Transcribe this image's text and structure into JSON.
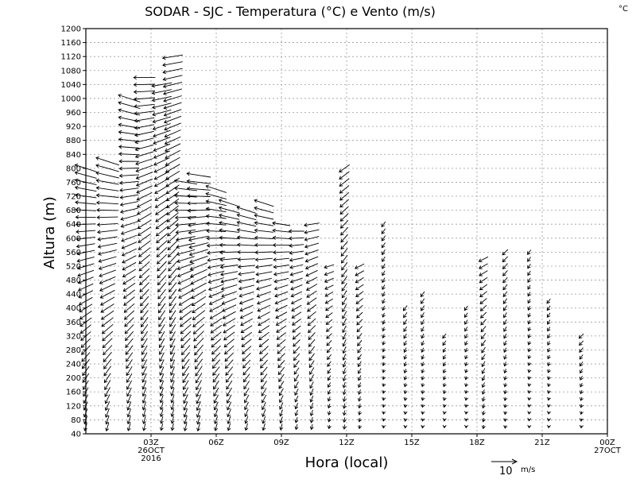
{
  "title": "SODAR - SJC - Temperatura (°C) e Vento (m/s)",
  "unit_corner": "°C",
  "scale": {
    "label": "10",
    "unit": "m/s"
  },
  "chart_data": {
    "type": "wind-profile",
    "title": "SODAR - SJC - Temperatura (°C) e Vento (m/s)",
    "xlabel": "Hora (local)",
    "ylabel": "Altura (m)",
    "ylim": [
      40,
      1200
    ],
    "xlim_hours": [
      0,
      24
    ],
    "grid": true,
    "y_ticks": [
      40,
      80,
      120,
      160,
      200,
      240,
      280,
      320,
      360,
      400,
      440,
      480,
      520,
      560,
      600,
      640,
      680,
      720,
      760,
      800,
      840,
      880,
      920,
      960,
      1000,
      1040,
      1080,
      1120,
      1160,
      1200
    ],
    "x_ticks": [
      {
        "hour": 3,
        "lines": [
          "03Z",
          "26OCT",
          "2016"
        ]
      },
      {
        "hour": 6,
        "lines": [
          "06Z"
        ]
      },
      {
        "hour": 9,
        "lines": [
          "09Z"
        ]
      },
      {
        "hour": 12,
        "lines": [
          "12Z"
        ]
      },
      {
        "hour": 15,
        "lines": [
          "15Z"
        ]
      },
      {
        "hour": 18,
        "lines": [
          "18Z"
        ]
      },
      {
        "hour": 21,
        "lines": [
          "21Z"
        ]
      },
      {
        "hour": 24,
        "lines": [
          "00Z",
          "27OCT"
        ]
      }
    ],
    "wind_profiles": [
      {
        "hour": 0.0,
        "top": 800,
        "speed": 9.0,
        "curve": 0.6
      },
      {
        "hour": 1.0,
        "top": 820,
        "speed": 9.5,
        "curve": 0.6
      },
      {
        "hour": 2.0,
        "top": 1000,
        "speed": 9.0,
        "curve": 0.6
      },
      {
        "hour": 2.7,
        "top": 1060,
        "speed": 8.5,
        "curve": 0.5
      },
      {
        "hour": 3.5,
        "top": 1050,
        "speed": 8.0,
        "curve": 0.45
      },
      {
        "hour": 4.0,
        "top": 1120,
        "speed": 8.0,
        "curve": 0.45
      },
      {
        "hour": 4.6,
        "top": 760,
        "speed": 9.0,
        "curve": 0.55
      },
      {
        "hour": 5.2,
        "top": 780,
        "speed": 9.5,
        "curve": 0.55
      },
      {
        "hour": 6.0,
        "top": 740,
        "speed": 8.5,
        "curve": 0.6
      },
      {
        "hour": 6.6,
        "top": 700,
        "speed": 8.5,
        "curve": 0.6
      },
      {
        "hour": 7.4,
        "top": 680,
        "speed": 8.0,
        "curve": 0.6
      },
      {
        "hour": 8.2,
        "top": 700,
        "speed": 8.0,
        "curve": 0.6
      },
      {
        "hour": 9.0,
        "top": 640,
        "speed": 7.0,
        "curve": 0.55
      },
      {
        "hour": 9.7,
        "top": 620,
        "speed": 6.0,
        "curve": 0.5
      },
      {
        "hour": 10.4,
        "top": 640,
        "speed": 6.0,
        "curve": 0.45
      },
      {
        "hour": 11.2,
        "top": 520,
        "speed": 4.0,
        "curve": 0.4
      },
      {
        "hour": 11.9,
        "top": 800,
        "speed": 5.0,
        "curve": 0.3
      },
      {
        "hour": 12.6,
        "top": 520,
        "speed": 4.0,
        "curve": 0.35
      },
      {
        "hour": 13.7,
        "top": 640,
        "speed": 2.5,
        "curve": 0.2
      },
      {
        "hour": 14.7,
        "top": 400,
        "speed": 2.5,
        "curve": 0.2
      },
      {
        "hour": 15.5,
        "top": 440,
        "speed": 2.5,
        "curve": 0.2
      },
      {
        "hour": 16.5,
        "top": 320,
        "speed": 2.2,
        "curve": 0.2
      },
      {
        "hour": 17.5,
        "top": 400,
        "speed": 2.2,
        "curve": 0.2
      },
      {
        "hour": 18.3,
        "top": 540,
        "speed": 4.0,
        "curve": 0.35
      },
      {
        "hour": 19.3,
        "top": 560,
        "speed": 3.0,
        "curve": 0.25
      },
      {
        "hour": 20.4,
        "top": 560,
        "speed": 2.2,
        "curve": 0.2
      },
      {
        "hour": 21.3,
        "top": 420,
        "speed": 2.2,
        "curve": 0.2
      },
      {
        "hour": 22.8,
        "top": 320,
        "speed": 2.5,
        "curve": 0.25
      }
    ]
  }
}
